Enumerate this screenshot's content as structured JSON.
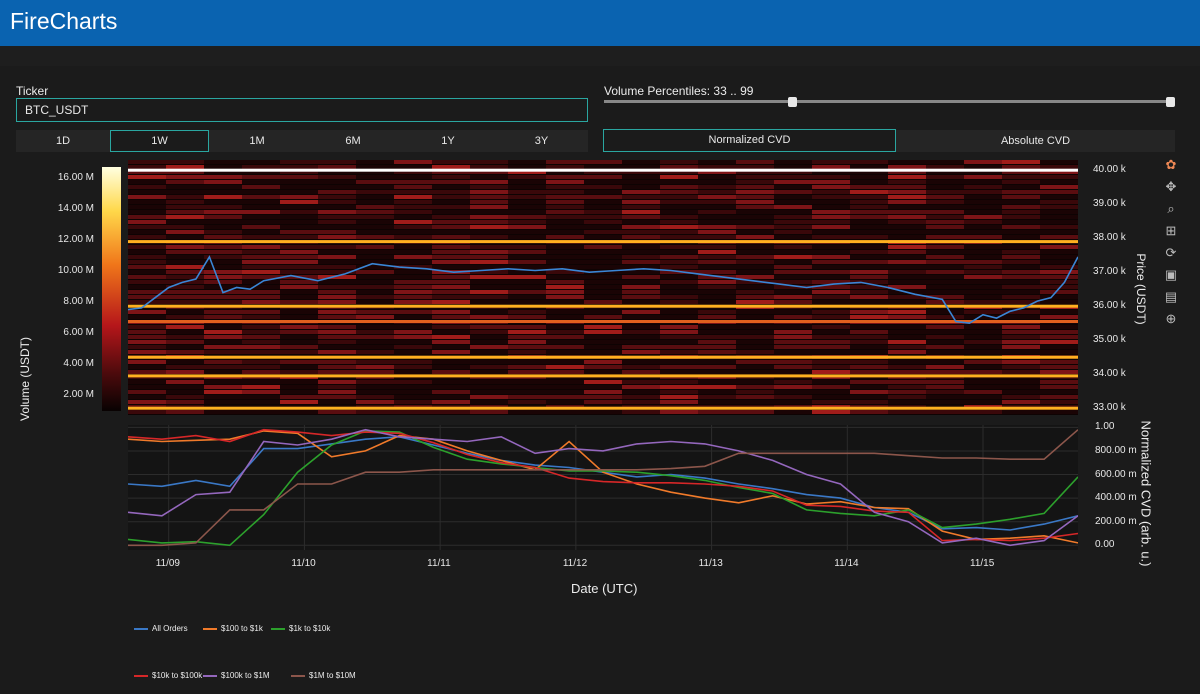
{
  "app": {
    "title": "FireCharts"
  },
  "ticker": {
    "label": "Ticker",
    "value": "BTC_USDT"
  },
  "volume_percentiles": {
    "label": "Volume Percentiles: 33 .. 99",
    "low": 33,
    "high": 99
  },
  "timeframes": [
    {
      "label": "1D",
      "active": false
    },
    {
      "label": "1W",
      "active": true
    },
    {
      "label": "1M",
      "active": false
    },
    {
      "label": "6M",
      "active": false
    },
    {
      "label": "1Y",
      "active": false
    },
    {
      "label": "3Y",
      "active": false
    }
  ],
  "cvd_modes": [
    {
      "label": "Normalized CVD",
      "active": true
    },
    {
      "label": "Absolute CVD",
      "active": false
    }
  ],
  "modebar_icons": [
    "plotly-logo-icon",
    "pan-icon",
    "zoom-icon",
    "zoom-in-icon",
    "lasso-icon",
    "reset-icon",
    "download-icon",
    "spike-icon",
    "crosshair-icon"
  ],
  "chart_data": [
    {
      "type": "heatmap",
      "title": "",
      "colorbar_label": "Volume (USDT)",
      "colorbar_ticks": [
        "16.00 M",
        "14.00 M",
        "12.00 M",
        "10.00 M",
        "8.00 M",
        "6.00 M",
        "4.00 M",
        "2.00 M"
      ],
      "ylabel": "Price (USDT)",
      "y_ticks": [
        "40.00 k",
        "39.00 k",
        "38.00 k",
        "37.00 k",
        "36.00 k",
        "35.00 k",
        "34.00 k",
        "33.00 k"
      ],
      "ylim": [
        32800,
        40300
      ],
      "price_series": {
        "name": "price",
        "x": [
          0,
          0.1,
          0.2,
          0.3,
          0.4,
          0.5,
          0.6,
          0.7,
          0.8,
          0.9,
          1.0,
          1.2,
          1.4,
          1.6,
          1.8,
          2.0,
          2.2,
          2.4,
          2.6,
          2.8,
          3.0,
          3.2,
          3.4,
          3.6,
          3.8,
          4.0,
          4.2,
          4.4,
          4.6,
          4.8,
          5.0,
          5.2,
          5.4,
          5.6,
          5.8,
          6.0,
          6.1,
          6.2,
          6.3,
          6.4,
          6.5,
          6.6,
          6.7,
          6.8,
          6.9,
          7.0
        ],
        "y": [
          35900,
          35950,
          36250,
          36550,
          36700,
          36800,
          37450,
          36400,
          36550,
          36500,
          36750,
          36900,
          36750,
          36950,
          37250,
          37150,
          37100,
          37000,
          37050,
          37100,
          37050,
          37100,
          37000,
          37050,
          37100,
          37050,
          36950,
          36850,
          36750,
          36650,
          36550,
          36650,
          36700,
          36550,
          36350,
          36200,
          35550,
          35500,
          35750,
          35650,
          35850,
          35950,
          36150,
          36250,
          36700,
          37450
        ]
      },
      "bright_levels": [
        {
          "price": 40000,
          "intensity": "max"
        },
        {
          "price": 37900,
          "intensity": "high"
        },
        {
          "price": 36000,
          "intensity": "high"
        },
        {
          "price": 35550,
          "intensity": "mid"
        },
        {
          "price": 34500,
          "intensity": "high"
        },
        {
          "price": 33950,
          "intensity": "high"
        },
        {
          "price": 33000,
          "intensity": "high"
        }
      ]
    },
    {
      "type": "line",
      "title": "",
      "xlabel": "Date (UTC)",
      "ylabel": "Normalized CVD (arb. u.)",
      "x_ticks": [
        "11/09",
        "11/10",
        "11/11",
        "11/12",
        "11/13",
        "11/14",
        "11/15"
      ],
      "y_ticks": [
        "1.00",
        "800.00 m",
        "600.00 m",
        "400.00 m",
        "200.00 m",
        "0.00"
      ],
      "ylim": [
        -0.04,
        1.02
      ],
      "x": [
        0,
        0.25,
        0.5,
        0.75,
        1.0,
        1.25,
        1.5,
        1.75,
        2.0,
        2.25,
        2.5,
        2.75,
        3.0,
        3.25,
        3.5,
        3.75,
        4.0,
        4.25,
        4.5,
        4.75,
        5.0,
        5.25,
        5.5,
        5.75,
        6.0,
        6.25,
        6.5,
        6.75,
        7.0
      ],
      "series": [
        {
          "name": "All Orders",
          "color": "#3a78c6",
          "values": [
            0.52,
            0.5,
            0.55,
            0.5,
            0.82,
            0.82,
            0.86,
            0.9,
            0.92,
            0.85,
            0.78,
            0.72,
            0.68,
            0.66,
            0.62,
            0.58,
            0.6,
            0.57,
            0.52,
            0.48,
            0.43,
            0.4,
            0.32,
            0.28,
            0.14,
            0.15,
            0.13,
            0.18,
            0.25
          ]
        },
        {
          "name": "$100 to $1k",
          "color": "#f07a2a",
          "values": [
            0.9,
            0.88,
            0.89,
            0.9,
            0.97,
            0.95,
            0.75,
            0.8,
            0.93,
            0.9,
            0.8,
            0.72,
            0.64,
            0.88,
            0.62,
            0.52,
            0.45,
            0.4,
            0.36,
            0.42,
            0.35,
            0.37,
            0.32,
            0.31,
            0.12,
            0.05,
            0.06,
            0.08,
            0.02
          ]
        },
        {
          "name": "$1k to $10k",
          "color": "#2ca02c",
          "values": [
            0.05,
            0.02,
            0.03,
            0.0,
            0.26,
            0.62,
            0.85,
            0.97,
            0.96,
            0.83,
            0.73,
            0.69,
            0.66,
            0.63,
            0.63,
            0.62,
            0.59,
            0.55,
            0.49,
            0.44,
            0.3,
            0.27,
            0.25,
            0.3,
            0.15,
            0.18,
            0.22,
            0.27,
            0.58
          ]
        },
        {
          "name": "$10k to $100k",
          "color": "#d62728",
          "values": [
            0.92,
            0.9,
            0.93,
            0.88,
            0.98,
            0.96,
            0.93,
            0.96,
            0.95,
            0.87,
            0.77,
            0.7,
            0.66,
            0.57,
            0.54,
            0.53,
            0.53,
            0.52,
            0.5,
            0.46,
            0.34,
            0.33,
            0.29,
            0.28,
            0.04,
            0.05,
            0.04,
            0.06,
            0.1
          ]
        },
        {
          "name": "$100k to $1M",
          "color": "#9467bd",
          "values": [
            0.28,
            0.25,
            0.43,
            0.45,
            0.88,
            0.85,
            0.9,
            0.98,
            0.92,
            0.9,
            0.88,
            0.92,
            0.78,
            0.82,
            0.8,
            0.86,
            0.88,
            0.86,
            0.8,
            0.72,
            0.6,
            0.52,
            0.28,
            0.2,
            0.02,
            0.06,
            0.0,
            0.04,
            0.25
          ]
        },
        {
          "name": "$1M to $10M",
          "color": "#8c564b",
          "values": [
            0.0,
            0.0,
            0.02,
            0.3,
            0.3,
            0.52,
            0.52,
            0.62,
            0.62,
            0.64,
            0.64,
            0.64,
            0.64,
            0.64,
            0.64,
            0.64,
            0.65,
            0.67,
            0.78,
            0.78,
            0.78,
            0.78,
            0.78,
            0.76,
            0.74,
            0.74,
            0.73,
            0.73,
            0.98
          ]
        }
      ]
    }
  ]
}
